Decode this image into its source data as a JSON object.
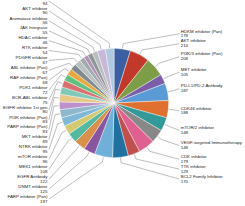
{
  "chart_data": {
    "type": "pie",
    "categories": [
      "HDKM inhibitor (Pan)",
      "AKT inhibitor",
      "PI3K/3 inhibitor (Pan)",
      "MET inhibitor",
      "PD-L1/PD-2 Antibody",
      "CDK46 inhibitor",
      "mTOR/2 inhibitor",
      "VEGF-targeted Immunotherapy",
      "CDK inhibitor",
      "TTK inhibitor",
      "BCL2 Family Inhibitor",
      "FARP inhibitor (Pan)",
      "DNMT inhibitor",
      "EGFR Antibody",
      "MEK1 inhibitor",
      "mTOR inhibitor",
      "NTRK inhibitor",
      "MKT inhibitor",
      "PARP inhibitor (Pan)",
      "PI3K inhibitor (Pan)",
      "EGFR inhibitor 1st gen",
      "BCR-ABL inhibitor",
      "PDK1 inhibitor",
      "RAF inhibitor (Pan)",
      "ABL inhibitor (Pan)",
      "PDGFR inhibitor",
      "RTK inhibitor",
      "HDAC inhibitor",
      "JAK Integrase",
      "Aromatase inhibitor",
      "AKT inhibitor",
      "FGFR inhibitor"
    ],
    "values": [
      178,
      214,
      208,
      105,
      187,
      188,
      148,
      148,
      179,
      129,
      170,
      197,
      125,
      122,
      108,
      96,
      95,
      89,
      83,
      83,
      80,
      75,
      72,
      68,
      67,
      67,
      54,
      46,
      55,
      56,
      90,
      94
    ],
    "colors": [
      "#3B5FA0",
      "#C0392B",
      "#7D9E47",
      "#7B5EA7",
      "#5B9BD5",
      "#E07030",
      "#339999",
      "#888888",
      "#E06090",
      "#C0504D",
      "#2070A0",
      "#70B0D8",
      "#8855A0",
      "#D8904A",
      "#55B8A0",
      "#D4C870",
      "#80B8D8",
      "#90B8CC",
      "#BB90CC",
      "#E8C888",
      "#80C8B8",
      "#D87070",
      "#60C080",
      "#E8A840",
      "#808890",
      "#B8C0C0",
      "#A0AAAA",
      "#B090B8",
      "#909898",
      "#B8BCBC",
      "#C8B8D8",
      "#B0C8E0"
    ],
    "data_labels": true
  }
}
